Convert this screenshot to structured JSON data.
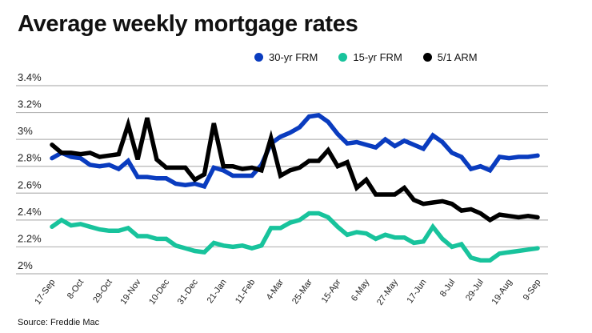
{
  "chart_data": {
    "type": "line",
    "title": "Average weekly mortgage rates",
    "source": "Source: Freddie Mac",
    "legend_position": "top",
    "grid": true,
    "ylim": [
      2.0,
      3.4
    ],
    "y_ticks": [
      "2%",
      "2.2%",
      "2.4%",
      "2.6%",
      "2.8%",
      "3%",
      "3.2%",
      "3.4%"
    ],
    "y_tick_values": [
      2.0,
      2.2,
      2.4,
      2.6,
      2.8,
      3.0,
      3.2,
      3.4
    ],
    "x": [
      "17-Sep",
      "24-Sep",
      "1-Oct",
      "8-Oct",
      "15-Oct",
      "22-Oct",
      "29-Oct",
      "5-Nov",
      "12-Nov",
      "19-Nov",
      "26-Nov",
      "3-Dec",
      "10-Dec",
      "17-Dec",
      "24-Dec",
      "31-Dec",
      "7-Jan",
      "14-Jan",
      "21-Jan",
      "28-Jan",
      "4-Feb",
      "11-Feb",
      "18-Feb",
      "25-Feb",
      "4-Mar",
      "11-Mar",
      "18-Mar",
      "25-Mar",
      "1-Apr",
      "8-Apr",
      "15-Apr",
      "22-Apr",
      "29-Apr",
      "6-May",
      "13-May",
      "20-May",
      "27-May",
      "3-Jun",
      "10-Jun",
      "17-Jun",
      "24-Jun",
      "1-Jul",
      "8-Jul",
      "15-Jul",
      "22-Jul",
      "29-Jul",
      "5-Aug",
      "12-Aug",
      "19-Aug",
      "26-Aug",
      "2-Sep",
      "9-Sep"
    ],
    "x_tick_labels": [
      "17-Sep",
      "8-Oct",
      "29-Oct",
      "19-Nov",
      "10-Dec",
      "31-Dec",
      "21-Jan",
      "11-Feb",
      "4-Mar",
      "25-Mar",
      "15-Apr",
      "6-May",
      "27-May",
      "17-Jun",
      "8-Jul",
      "29-Jul",
      "19-Aug",
      "9-Sep"
    ],
    "series": [
      {
        "name": "30-yr FRM",
        "color": "#0a3cbf",
        "values": [
          2.86,
          2.9,
          2.87,
          2.86,
          2.81,
          2.8,
          2.81,
          2.78,
          2.84,
          2.72,
          2.72,
          2.71,
          2.71,
          2.67,
          2.66,
          2.67,
          2.65,
          2.79,
          2.77,
          2.73,
          2.73,
          2.73,
          2.81,
          2.97,
          3.02,
          3.05,
          3.09,
          3.17,
          3.18,
          3.13,
          3.04,
          2.97,
          2.98,
          2.96,
          2.94,
          3.0,
          2.95,
          2.99,
          2.96,
          2.93,
          3.03,
          2.98,
          2.9,
          2.87,
          2.78,
          2.8,
          2.77,
          2.87,
          2.86,
          2.87,
          2.87,
          2.88
        ]
      },
      {
        "name": "15-yr FRM",
        "color": "#18c39c",
        "values": [
          2.35,
          2.4,
          2.36,
          2.37,
          2.35,
          2.33,
          2.32,
          2.32,
          2.34,
          2.28,
          2.28,
          2.26,
          2.26,
          2.21,
          2.19,
          2.17,
          2.16,
          2.23,
          2.21,
          2.2,
          2.21,
          2.19,
          2.21,
          2.34,
          2.34,
          2.38,
          2.4,
          2.45,
          2.45,
          2.42,
          2.35,
          2.29,
          2.31,
          2.3,
          2.26,
          2.29,
          2.27,
          2.27,
          2.23,
          2.24,
          2.35,
          2.26,
          2.2,
          2.22,
          2.12,
          2.1,
          2.1,
          2.15,
          2.16,
          2.17,
          2.18,
          2.19
        ]
      },
      {
        "name": "5/1 ARM",
        "color": "#000000",
        "values": [
          2.96,
          2.9,
          2.9,
          2.89,
          2.9,
          2.87,
          2.88,
          2.89,
          3.11,
          2.85,
          3.16,
          2.85,
          2.79,
          2.79,
          2.79,
          2.7,
          2.74,
          3.12,
          2.8,
          2.8,
          2.78,
          2.79,
          2.77,
          3.01,
          2.73,
          2.77,
          2.79,
          2.84,
          2.84,
          2.92,
          2.8,
          2.83,
          2.64,
          2.7,
          2.59,
          2.59,
          2.59,
          2.64,
          2.55,
          2.52,
          2.53,
          2.54,
          2.52,
          2.47,
          2.48,
          2.45,
          2.4,
          2.44,
          2.43,
          2.42,
          2.43,
          2.42
        ]
      }
    ]
  }
}
